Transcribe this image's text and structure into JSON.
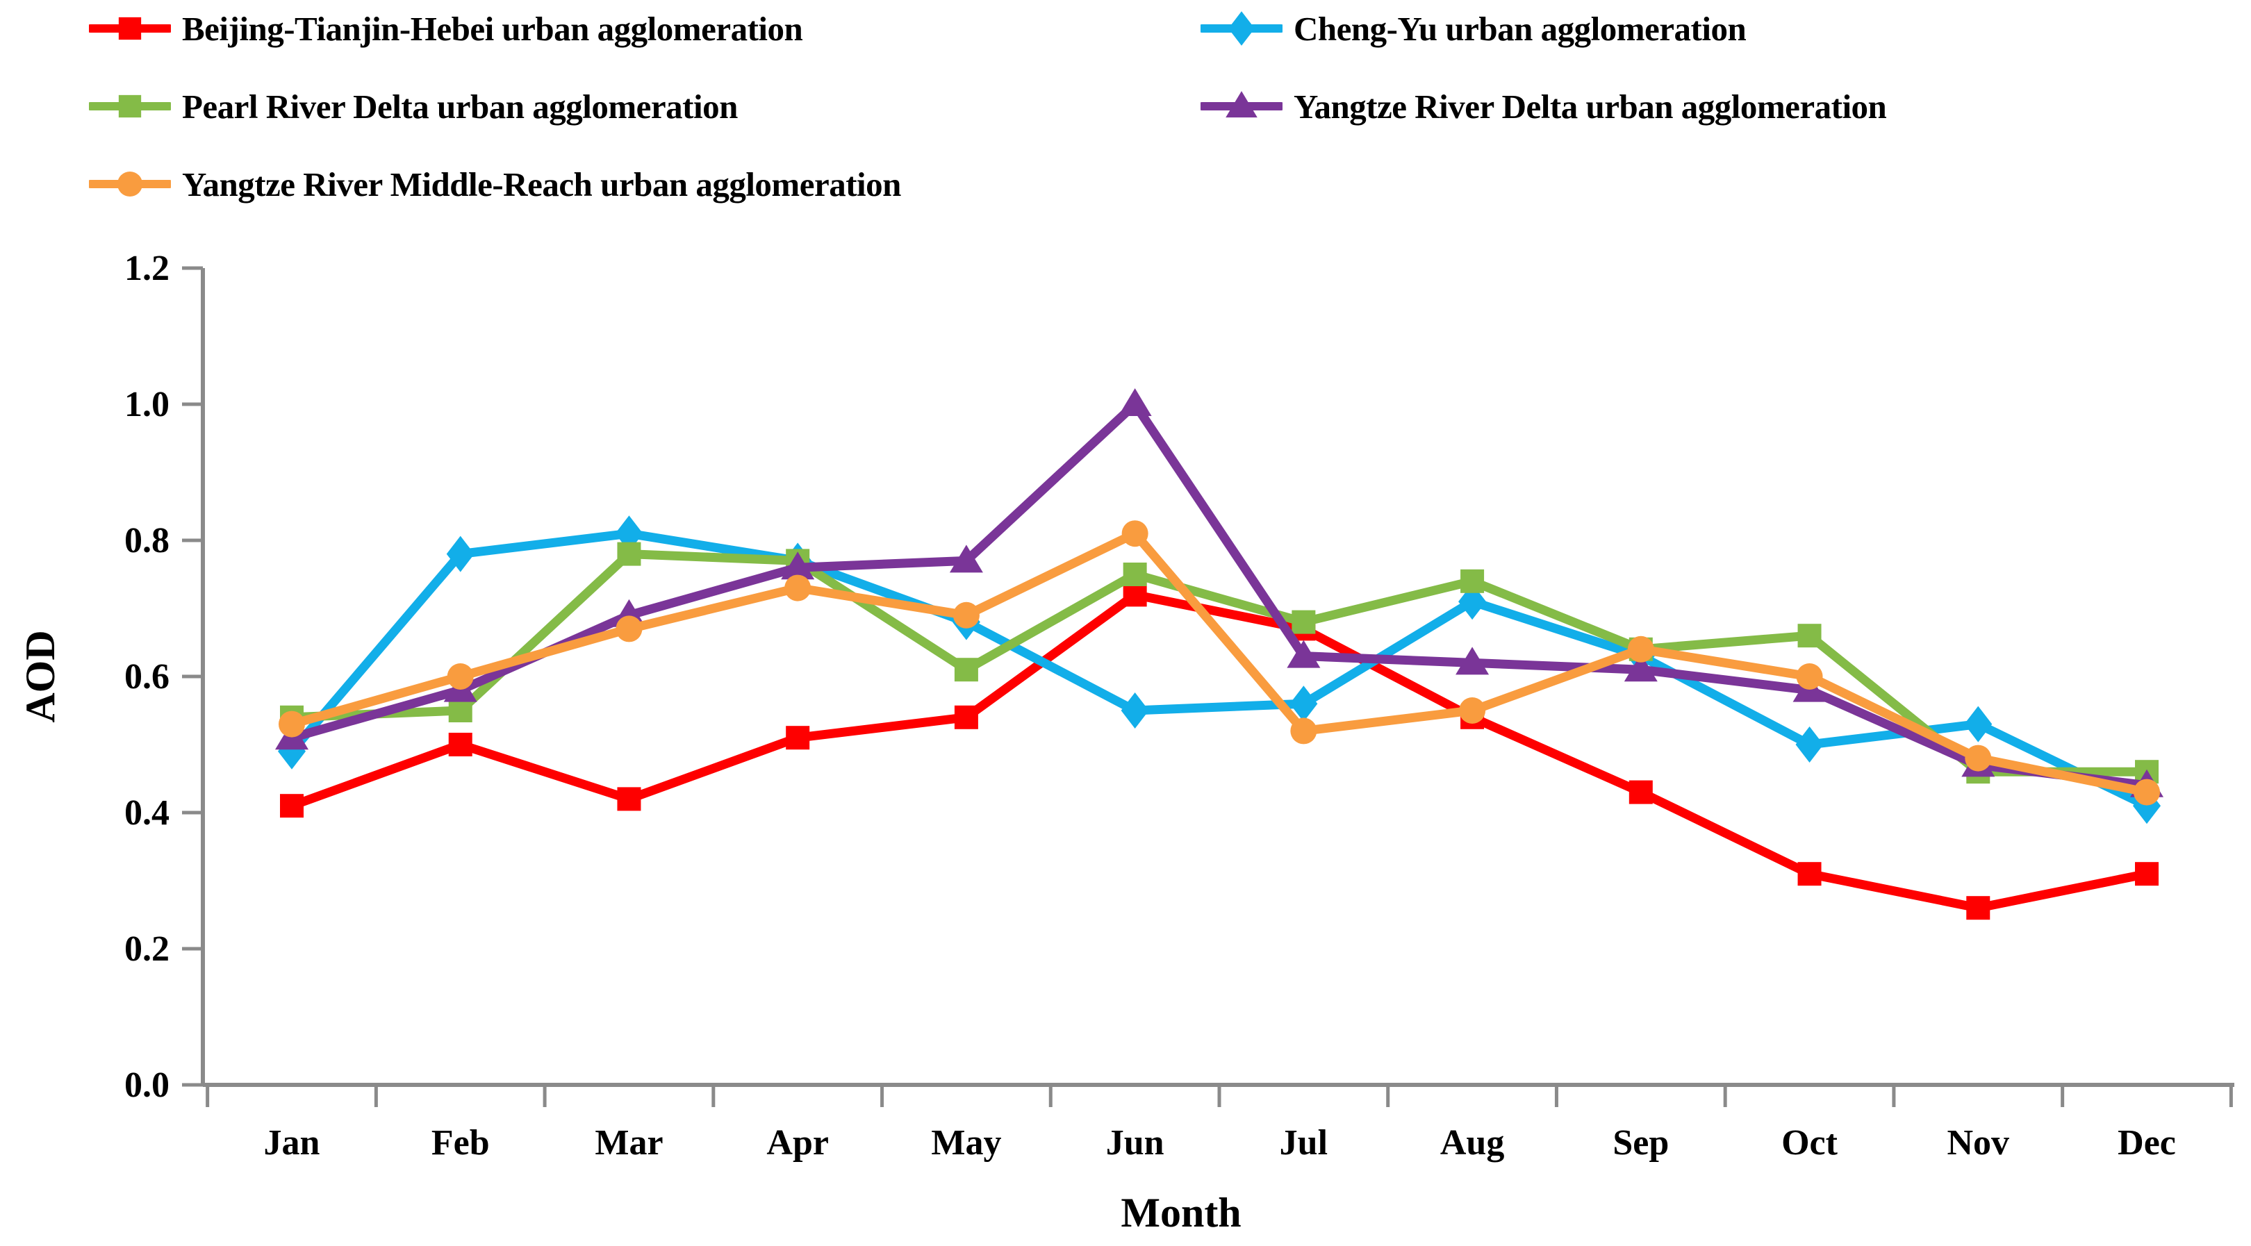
{
  "chart_data": {
    "type": "line",
    "title": "",
    "xlabel": "Month",
    "ylabel": "AOD",
    "ylim": [
      0.0,
      1.2
    ],
    "yticks": [
      "0.0",
      "0.2",
      "0.4",
      "0.6",
      "0.8",
      "1.0",
      "1.2"
    ],
    "grid": "off",
    "legend_position": "top-left, two columns",
    "categories": [
      "Jan",
      "Feb",
      "Mar",
      "Apr",
      "May",
      "Jun",
      "Jul",
      "Aug",
      "Sep",
      "Oct",
      "Nov",
      "Dec"
    ],
    "series": [
      {
        "name": "Beijing-Tianjin-Hebei urban agglomeration",
        "marker": "square",
        "color": "#FE0000",
        "values": [
          0.41,
          0.5,
          0.42,
          0.51,
          0.54,
          0.72,
          0.67,
          0.54,
          0.43,
          0.31,
          0.26,
          0.31
        ]
      },
      {
        "name": "Cheng-Yu urban agglomeration",
        "marker": "diamond",
        "color": "#12AEE9",
        "values": [
          0.49,
          0.78,
          0.81,
          0.77,
          0.68,
          0.55,
          0.56,
          0.71,
          0.63,
          0.5,
          0.53,
          0.41
        ]
      },
      {
        "name": "Pearl River Delta urban agglomeration",
        "marker": "square",
        "color": "#84BB47",
        "values": [
          0.54,
          0.55,
          0.78,
          0.77,
          0.61,
          0.75,
          0.68,
          0.74,
          0.64,
          0.66,
          0.46,
          0.46
        ]
      },
      {
        "name": "Yangtze River Delta urban agglomeration",
        "marker": "triangle",
        "color": "#7A3598",
        "values": [
          0.51,
          0.58,
          0.69,
          0.76,
          0.77,
          1.0,
          0.63,
          0.62,
          0.61,
          0.58,
          0.47,
          0.44
        ]
      },
      {
        "name": "Yangtze River Middle-Reach urban agglomeration",
        "marker": "circle",
        "color": "#F99C3F",
        "values": [
          0.53,
          0.6,
          0.67,
          0.73,
          0.69,
          0.81,
          0.52,
          0.55,
          0.64,
          0.6,
          0.48,
          0.43
        ]
      }
    ],
    "axis_color": "#8A8A8A"
  }
}
